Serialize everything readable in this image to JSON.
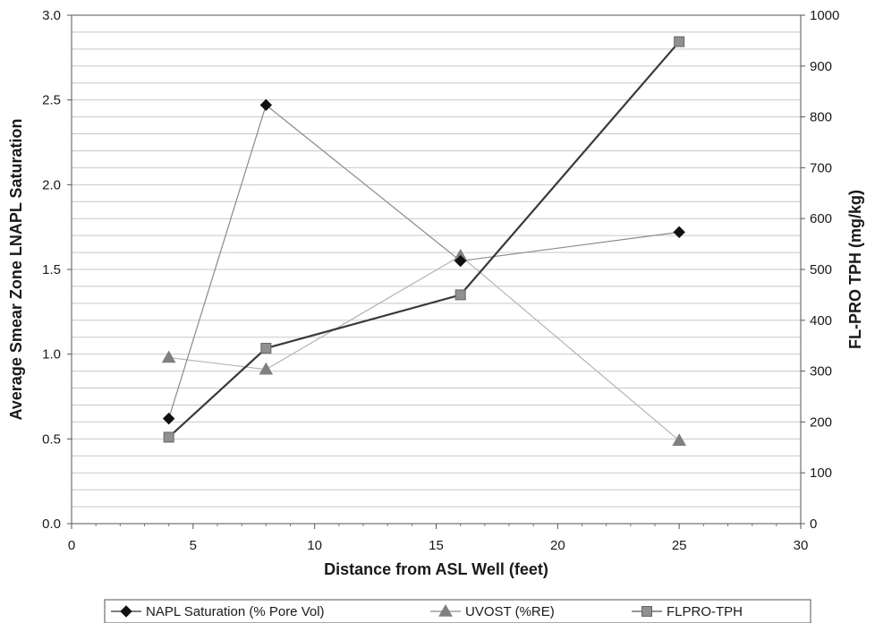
{
  "chart_data": {
    "type": "line",
    "title": "",
    "xlabel": "Distance from ASL Well (feet)",
    "ylabel_left": "Average Smear Zone LNAPL Saturation",
    "ylabel_right": "FL-PRO TPH (mg/kg)",
    "xlim": [
      0,
      30
    ],
    "ylim_left": [
      0,
      3.0
    ],
    "ylim_right": [
      0,
      1000
    ],
    "x_ticks": [
      "0",
      "5",
      "10",
      "15",
      "20",
      "25",
      "30"
    ],
    "y_left_ticks": [
      "0.0",
      "0.5",
      "1.0",
      "1.5",
      "2.0",
      "2.5",
      "3.0"
    ],
    "y_right_ticks": [
      "0",
      "100",
      "200",
      "300",
      "400",
      "500",
      "600",
      "700",
      "800",
      "900",
      "1000"
    ],
    "grid": true,
    "legend_position": "bottom",
    "series": [
      {
        "name": "NAPL Saturation (% Pore Vol)",
        "axis": "left",
        "marker": "diamond",
        "color": "#111111",
        "points": [
          [
            4,
            0.62
          ],
          [
            8,
            2.47
          ],
          [
            16,
            1.55
          ],
          [
            25,
            1.72
          ]
        ]
      },
      {
        "name": "UVOST (%RE)",
        "axis": "left",
        "marker": "triangle",
        "color": "#808080",
        "points": [
          [
            4,
            0.98
          ],
          [
            8,
            0.91
          ],
          [
            16,
            1.58
          ],
          [
            25,
            0.49
          ]
        ]
      },
      {
        "name": "FLPRO-TPH",
        "axis": "right",
        "marker": "square",
        "color": "#909090",
        "points": [
          [
            4,
            170
          ],
          [
            8,
            345
          ],
          [
            16,
            450
          ],
          [
            25,
            948
          ]
        ]
      }
    ]
  }
}
